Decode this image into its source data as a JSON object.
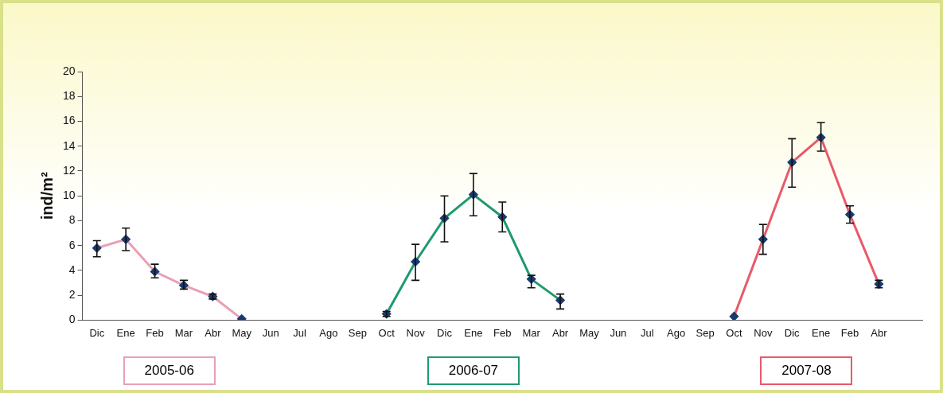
{
  "chart_data": {
    "type": "line",
    "ylabel": "ind/m²",
    "categories": [
      "Dic",
      "Ene",
      "Feb",
      "Mar",
      "Abr",
      "May",
      "Jun",
      "Jul",
      "Ago",
      "Sep",
      "Oct",
      "Nov",
      "Dic",
      "Ene",
      "Feb",
      "Mar",
      "Abr",
      "May",
      "Jun",
      "Jul",
      "Ago",
      "Sep",
      "Oct",
      "Nov",
      "Dic",
      "Ene",
      "Feb",
      "Abr",
      null
    ],
    "ylim": [
      0,
      20
    ],
    "yticks": [
      0,
      2,
      4,
      6,
      8,
      10,
      12,
      14,
      16,
      18,
      20
    ],
    "grid": false,
    "legend": "bottom",
    "marker": "diamond",
    "line_style": "solid",
    "series": [
      {
        "name": "2005-06",
        "color": "#e8a0b4",
        "values": [
          5.8,
          6.5,
          3.9,
          2.8,
          1.9,
          0.1,
          null,
          null,
          null,
          null,
          null,
          null,
          null,
          null,
          null,
          null,
          null,
          null,
          null,
          null,
          null,
          null,
          null,
          null,
          null,
          null,
          null,
          null,
          null
        ],
        "errors": [
          [
            5.1,
            6.4
          ],
          [
            5.6,
            7.4
          ],
          [
            3.4,
            4.5
          ],
          [
            2.5,
            3.2
          ],
          [
            1.7,
            2.1
          ],
          null,
          null,
          null,
          null,
          null,
          null,
          null,
          null,
          null,
          null,
          null,
          null,
          null,
          null,
          null,
          null,
          null,
          null,
          null,
          null,
          null,
          null,
          null,
          null
        ]
      },
      {
        "name": "2006-07",
        "color": "#1f9a6e",
        "values": [
          null,
          null,
          null,
          null,
          null,
          null,
          null,
          null,
          null,
          null,
          0.5,
          4.7,
          8.2,
          10.1,
          8.3,
          3.3,
          1.6,
          null,
          null,
          null,
          null,
          null,
          null,
          null,
          null,
          null,
          null,
          null,
          null
        ],
        "errors": [
          null,
          null,
          null,
          null,
          null,
          null,
          null,
          null,
          null,
          null,
          [
            0.3,
            0.7
          ],
          [
            3.2,
            6.1
          ],
          [
            6.3,
            10
          ],
          [
            8.4,
            11.8
          ],
          [
            7.1,
            9.5
          ],
          [
            2.6,
            3.6
          ],
          [
            0.9,
            2.1
          ],
          null,
          null,
          null,
          null,
          null,
          null,
          null,
          null,
          null,
          null,
          null,
          null
        ]
      },
      {
        "name": "2007-08",
        "color": "#e85a6a",
        "values": [
          null,
          null,
          null,
          null,
          null,
          null,
          null,
          null,
          null,
          null,
          null,
          null,
          null,
          null,
          null,
          null,
          null,
          null,
          null,
          null,
          null,
          null,
          0.3,
          6.5,
          12.7,
          14.7,
          8.5,
          2.9,
          null
        ],
        "errors": [
          null,
          null,
          null,
          null,
          null,
          null,
          null,
          null,
          null,
          null,
          null,
          null,
          null,
          null,
          null,
          null,
          null,
          null,
          null,
          null,
          null,
          null,
          null,
          [
            5.3,
            7.7
          ],
          [
            10.7,
            14.6
          ],
          [
            13.6,
            15.9
          ],
          [
            7.8,
            9.2
          ],
          [
            2.6,
            3.2
          ],
          null
        ]
      }
    ]
  }
}
